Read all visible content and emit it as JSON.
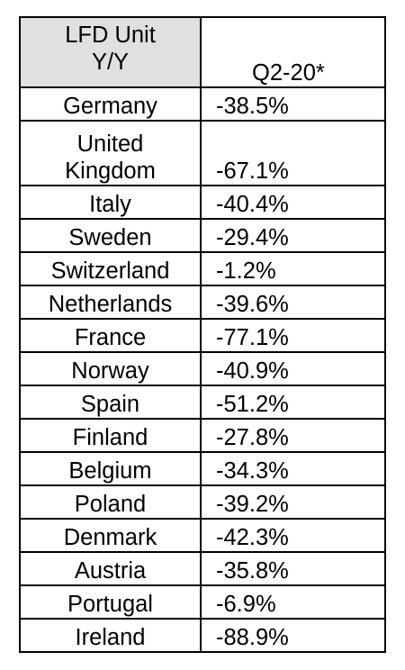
{
  "chart_data": {
    "type": "table",
    "columns": [
      "LFD Unit Y/Y",
      "Q2-20*"
    ],
    "header": {
      "left_line1": "LFD Unit",
      "left_line2": "Y/Y",
      "right": "Q2-20*"
    },
    "rows": [
      {
        "country": "Germany",
        "value": "-38.5%"
      },
      {
        "country": "United Kingdom",
        "value": "-67.1%"
      },
      {
        "country": "Italy",
        "value": "-40.4%"
      },
      {
        "country": "Sweden",
        "value": "-29.4%"
      },
      {
        "country": "Switzerland",
        "value": "-1.2%"
      },
      {
        "country": "Netherlands",
        "value": "-39.6%"
      },
      {
        "country": "France",
        "value": "-77.1%"
      },
      {
        "country": "Norway",
        "value": "-40.9%"
      },
      {
        "country": "Spain",
        "value": "-51.2%"
      },
      {
        "country": "Finland",
        "value": "-27.8%"
      },
      {
        "country": "Belgium",
        "value": "-34.3%"
      },
      {
        "country": "Poland",
        "value": "-39.2%"
      },
      {
        "country": "Denmark",
        "value": "-42.3%"
      },
      {
        "country": "Austria",
        "value": "-35.8%"
      },
      {
        "country": "Portugal",
        "value": "-6.9%"
      },
      {
        "country": "Ireland",
        "value": "-88.9%"
      }
    ],
    "values_numeric": [
      -38.5,
      -67.1,
      -40.4,
      -29.4,
      -1.2,
      -39.6,
      -77.1,
      -40.9,
      -51.2,
      -27.8,
      -34.3,
      -39.2,
      -42.3,
      -35.8,
      -6.9,
      -88.9
    ],
    "header_fill": "#e0e0e0",
    "border_color": "#000000"
  }
}
